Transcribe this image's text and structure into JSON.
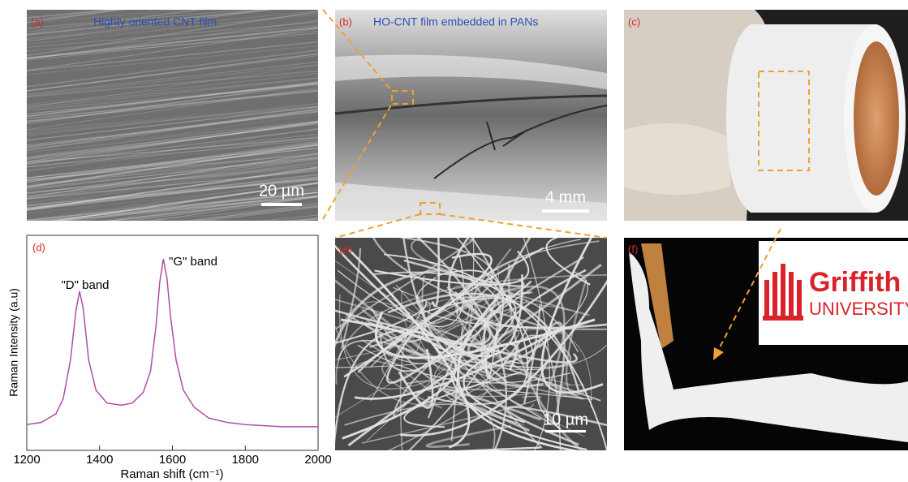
{
  "panels": {
    "a": {
      "label": "(a)",
      "title": "Highty oriented CNT film",
      "scale_bar": "20 µm"
    },
    "b": {
      "label": "(b)",
      "title": "HO-CNT film embedded in PANs",
      "scale_bar": "4 mm"
    },
    "c": {
      "label": "(c)"
    },
    "e": {
      "label": "(e)",
      "scale_bar": "10 µm"
    },
    "f": {
      "label": "(f)",
      "logo_name": "Griffith",
      "logo_sub": "UNIVERSITY"
    }
  },
  "chart_data": {
    "type": "line",
    "label": "(d)",
    "x_label": "Raman shift (cm⁻¹)",
    "y_label": "Raman Intensity (a.u)",
    "annotations": [
      "\"D\" band",
      "\"G\" band"
    ],
    "x": [
      1200,
      1240,
      1280,
      1300,
      1320,
      1335,
      1345,
      1355,
      1370,
      1390,
      1420,
      1460,
      1490,
      1520,
      1540,
      1555,
      1565,
      1575,
      1585,
      1595,
      1610,
      1630,
      1660,
      1700,
      1750,
      1800,
      1900,
      2000
    ],
    "series": [
      {
        "color": "#b04ca8",
        "values": [
          0.12,
          0.13,
          0.17,
          0.24,
          0.42,
          0.65,
          0.74,
          0.66,
          0.42,
          0.28,
          0.22,
          0.21,
          0.22,
          0.27,
          0.37,
          0.58,
          0.78,
          0.89,
          0.8,
          0.62,
          0.42,
          0.28,
          0.2,
          0.15,
          0.13,
          0.12,
          0.11,
          0.11
        ]
      }
    ],
    "xlim": [
      1200,
      2000
    ],
    "ylim": [
      0,
      1
    ],
    "xticks": [
      1200,
      1400,
      1600,
      1800,
      2000
    ]
  }
}
